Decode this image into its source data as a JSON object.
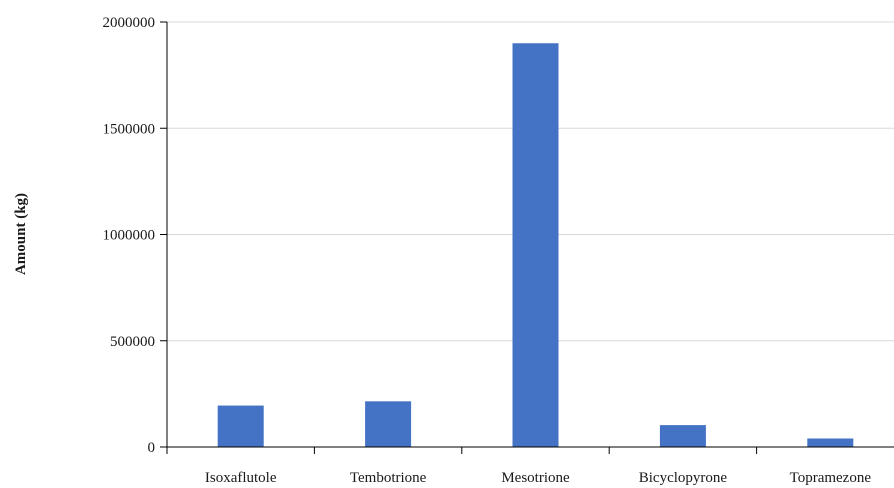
{
  "chart_data": {
    "type": "bar",
    "title": "",
    "xlabel": "",
    "ylabel": "Amount (kg)",
    "categories": [
      "Isoxaflutole",
      "Tembotrione",
      "Mesotrione",
      "Bicyclopyrone",
      "Topramezone"
    ],
    "values": [
      195000,
      215000,
      1900000,
      103000,
      40000
    ],
    "ylim": [
      0,
      2000000
    ],
    "yticks": [
      0,
      500000,
      1000000,
      1500000,
      2000000
    ],
    "ytick_labels": [
      "0",
      "500000",
      "1000000",
      "1500000",
      "2000000"
    ],
    "grid": "horizontal",
    "bar_color": "#4472c4",
    "grid_color": "#d9d9d9",
    "axis_color": "#000000"
  }
}
